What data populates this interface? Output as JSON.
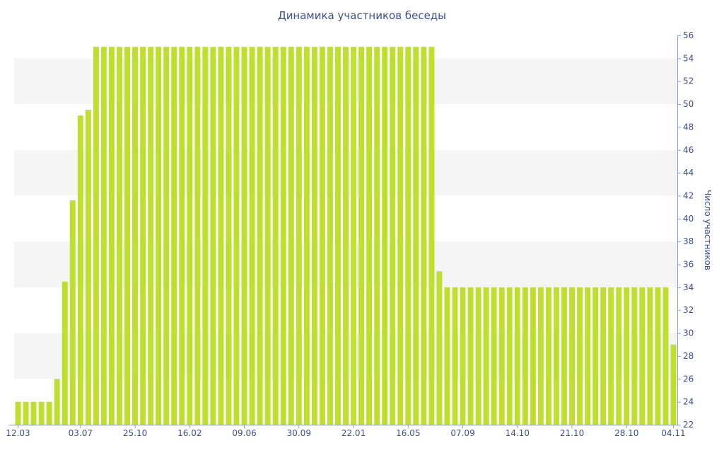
{
  "chart_data": {
    "type": "bar",
    "title": "Динамика участников беседы",
    "xlabel": "",
    "ylabel": "Число участников",
    "ylim": [
      22,
      56
    ],
    "y_axis_side": "right",
    "y_ticks": [
      22,
      24,
      26,
      28,
      30,
      32,
      34,
      36,
      38,
      40,
      42,
      44,
      46,
      48,
      50,
      52,
      54,
      56
    ],
    "x_tick_labels": [
      {
        "label": "12.03",
        "index": 0
      },
      {
        "label": "03.07",
        "index": 8
      },
      {
        "label": "25.10",
        "index": 15
      },
      {
        "label": "16.02",
        "index": 22
      },
      {
        "label": "09.06",
        "index": 29
      },
      {
        "label": "30.09",
        "index": 36
      },
      {
        "label": "22.01",
        "index": 43
      },
      {
        "label": "16.05",
        "index": 50
      },
      {
        "label": "07.09",
        "index": 57
      },
      {
        "label": "14.10",
        "index": 64
      },
      {
        "label": "21.10",
        "index": 71
      },
      {
        "label": "28.10",
        "index": 78
      },
      {
        "label": "04.11",
        "index": 84
      }
    ],
    "grid": "horizontal bands",
    "bar_color": "#bfdf2e",
    "values": [
      24,
      24,
      24,
      24,
      24,
      26,
      34.5,
      41.6,
      49,
      49.5,
      55,
      55,
      55,
      55,
      55,
      55,
      55,
      55,
      55,
      55,
      55,
      55,
      55,
      55,
      55,
      55,
      55,
      55,
      55,
      55,
      55,
      55,
      55,
      55,
      55,
      55,
      55,
      55,
      55,
      55,
      55,
      55,
      55,
      55,
      55,
      55,
      55,
      55,
      55,
      55,
      55,
      55,
      55,
      55,
      35.4,
      34,
      34,
      34,
      34,
      34,
      34,
      34,
      34,
      34,
      34,
      34,
      34,
      34,
      34,
      34,
      34,
      34,
      34,
      34,
      34,
      34,
      34,
      34,
      34,
      34,
      34,
      34,
      34,
      34,
      29
    ]
  }
}
